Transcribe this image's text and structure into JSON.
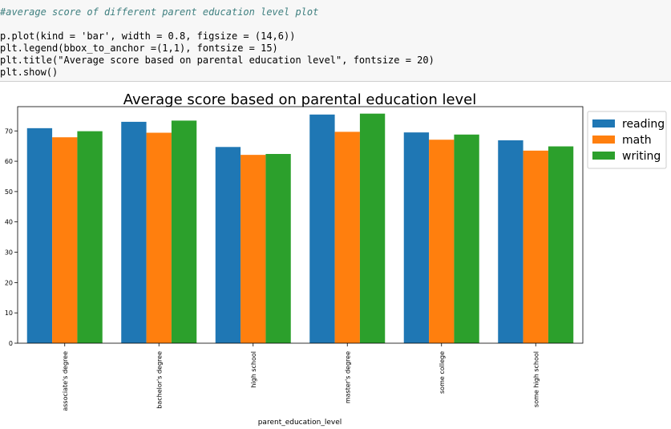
{
  "code": {
    "comment": "#average score of different parent education level plot",
    "lines": [
      "p.plot(kind = 'bar', width = 0.8, figsize = (14,6))",
      "plt.legend(bbox_to_anchor =(1,1), fontsize = 15)",
      "plt.title(\"Average score based on parental education level\", fontsize = 20)",
      "plt.show()"
    ]
  },
  "colors": {
    "reading": "#1f77b4",
    "math": "#ff7f0e",
    "writing": "#2ca02c",
    "code_background": "#f7f7f7"
  },
  "chart_data": {
    "type": "bar",
    "title": "Average score based on parental education level",
    "xlabel": "parent_education_level",
    "ylabel": "",
    "ylim": [
      0,
      78
    ],
    "yticks": [
      0,
      10,
      20,
      30,
      40,
      50,
      60,
      70
    ],
    "grid": false,
    "legend_position": "outside top-right",
    "categories": [
      "associate's degree",
      "bachelor's degree",
      "high school",
      "master's degree",
      "some college",
      "some high school"
    ],
    "series": [
      {
        "name": "reading",
        "values": [
          70.9,
          73.0,
          64.7,
          75.4,
          69.5,
          66.9
        ]
      },
      {
        "name": "math",
        "values": [
          67.9,
          69.4,
          62.1,
          69.7,
          67.1,
          63.5
        ]
      },
      {
        "name": "writing",
        "values": [
          69.9,
          73.4,
          62.4,
          75.7,
          68.8,
          64.9
        ]
      }
    ]
  }
}
